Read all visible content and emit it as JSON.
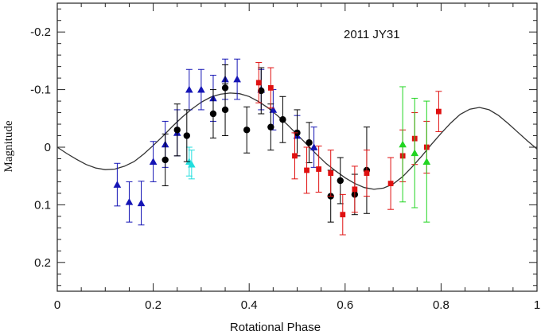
{
  "chart_data": {
    "type": "scatter",
    "title": "",
    "annotation": "2011 JY31",
    "xlabel": "Rotational Phase",
    "ylabel": "Magnitude",
    "xlim": [
      0,
      1
    ],
    "ylim": [
      0.25,
      -0.25
    ],
    "y_inverted": true,
    "grid": false,
    "legend": "none",
    "x_ticks": [
      0,
      0.2,
      0.4,
      0.6,
      0.8,
      1
    ],
    "x_tick_labels": [
      "0",
      "0.2",
      "0.4",
      "0.6",
      "0.8",
      "1"
    ],
    "y_ticks": [
      -0.2,
      -0.1,
      0,
      0.1,
      0.2
    ],
    "y_tick_labels": [
      "-0.2",
      "-0.1",
      "0",
      "0.1",
      "0.2"
    ],
    "series": [
      {
        "marker": "triangle",
        "color": "#1515b5",
        "points": [
          {
            "x": 0.125,
            "y": 0.065,
            "err": 0.037
          },
          {
            "x": 0.15,
            "y": 0.095,
            "err": 0.035
          },
          {
            "x": 0.175,
            "y": 0.097,
            "err": 0.038
          },
          {
            "x": 0.2,
            "y": 0.025,
            "err": 0.035
          },
          {
            "x": 0.225,
            "y": -0.005,
            "err": 0.04
          },
          {
            "x": 0.25,
            "y": -0.025,
            "err": 0.04
          },
          {
            "x": 0.275,
            "y": -0.1,
            "err": 0.035
          },
          {
            "x": 0.3,
            "y": -0.1,
            "err": 0.035
          },
          {
            "x": 0.325,
            "y": -0.085,
            "err": 0.04
          },
          {
            "x": 0.35,
            "y": -0.118,
            "err": 0.035
          },
          {
            "x": 0.375,
            "y": -0.118,
            "err": 0.035
          },
          {
            "x": 0.425,
            "y": -0.1,
            "err": 0.035
          },
          {
            "x": 0.45,
            "y": -0.065,
            "err": 0.035
          },
          {
            "x": 0.5,
            "y": -0.02,
            "err": 0.035
          },
          {
            "x": 0.535,
            "y": 0.0,
            "err": 0.035
          }
        ]
      },
      {
        "marker": "triangle",
        "color": "#22dede",
        "points": [
          {
            "x": 0.275,
            "y": 0.025,
            "err": 0.025
          },
          {
            "x": 0.28,
            "y": 0.03,
            "err": 0.025
          }
        ]
      },
      {
        "marker": "circle",
        "color": "#000000",
        "points": [
          {
            "x": 0.225,
            "y": 0.022,
            "err": 0.045
          },
          {
            "x": 0.25,
            "y": -0.03,
            "err": 0.045
          },
          {
            "x": 0.27,
            "y": -0.02,
            "err": 0.045
          },
          {
            "x": 0.325,
            "y": -0.058,
            "err": 0.042
          },
          {
            "x": 0.35,
            "y": -0.065,
            "err": 0.045
          },
          {
            "x": 0.35,
            "y": -0.103,
            "err": 0.04
          },
          {
            "x": 0.395,
            "y": -0.03,
            "err": 0.04
          },
          {
            "x": 0.425,
            "y": -0.098,
            "err": 0.04
          },
          {
            "x": 0.445,
            "y": -0.035,
            "err": 0.04
          },
          {
            "x": 0.47,
            "y": -0.048,
            "err": 0.04
          },
          {
            "x": 0.5,
            "y": -0.025,
            "err": 0.04
          },
          {
            "x": 0.525,
            "y": -0.008,
            "err": 0.035
          },
          {
            "x": 0.57,
            "y": 0.085,
            "err": 0.045
          },
          {
            "x": 0.59,
            "y": 0.058,
            "err": 0.04
          },
          {
            "x": 0.62,
            "y": 0.082,
            "err": 0.035
          },
          {
            "x": 0.645,
            "y": 0.04,
            "err": 0.075
          }
        ]
      },
      {
        "marker": "square",
        "color": "#e01010",
        "points": [
          {
            "x": 0.42,
            "y": -0.112,
            "err": 0.035
          },
          {
            "x": 0.445,
            "y": -0.103,
            "err": 0.035
          },
          {
            "x": 0.495,
            "y": 0.015,
            "err": 0.04
          },
          {
            "x": 0.52,
            "y": 0.04,
            "err": 0.04
          },
          {
            "x": 0.545,
            "y": 0.038,
            "err": 0.04
          },
          {
            "x": 0.57,
            "y": 0.045,
            "err": 0.04
          },
          {
            "x": 0.595,
            "y": 0.117,
            "err": 0.035
          },
          {
            "x": 0.62,
            "y": 0.073,
            "err": 0.04
          },
          {
            "x": 0.645,
            "y": 0.045,
            "err": 0.04
          },
          {
            "x": 0.695,
            "y": 0.063,
            "err": 0.045
          },
          {
            "x": 0.72,
            "y": 0.015,
            "err": 0.045
          },
          {
            "x": 0.745,
            "y": -0.015,
            "err": 0.045
          },
          {
            "x": 0.77,
            "y": 0.0,
            "err": 0.045
          },
          {
            "x": 0.795,
            "y": -0.062,
            "err": 0.035
          }
        ]
      },
      {
        "marker": "triangle",
        "color": "#22d522",
        "points": [
          {
            "x": 0.72,
            "y": -0.005,
            "err": 0.1
          },
          {
            "x": 0.745,
            "y": 0.01,
            "err": 0.095
          },
          {
            "x": 0.77,
            "y": 0.025,
            "err": 0.105
          }
        ]
      }
    ],
    "fit_curve": {
      "type": "line",
      "color": "#333333",
      "points": [
        [
          0.0,
          0.0
        ],
        [
          0.02,
          0.011
        ],
        [
          0.04,
          0.021
        ],
        [
          0.06,
          0.03
        ],
        [
          0.08,
          0.036
        ],
        [
          0.1,
          0.039
        ],
        [
          0.12,
          0.038
        ],
        [
          0.14,
          0.033
        ],
        [
          0.16,
          0.025
        ],
        [
          0.18,
          0.012
        ],
        [
          0.2,
          -0.003
        ],
        [
          0.22,
          -0.019
        ],
        [
          0.24,
          -0.036
        ],
        [
          0.26,
          -0.052
        ],
        [
          0.28,
          -0.066
        ],
        [
          0.3,
          -0.078
        ],
        [
          0.32,
          -0.087
        ],
        [
          0.34,
          -0.092
        ],
        [
          0.36,
          -0.094
        ],
        [
          0.38,
          -0.093
        ],
        [
          0.4,
          -0.088
        ],
        [
          0.42,
          -0.079
        ],
        [
          0.44,
          -0.068
        ],
        [
          0.46,
          -0.054
        ],
        [
          0.48,
          -0.039
        ],
        [
          0.5,
          -0.022
        ],
        [
          0.52,
          -0.005
        ],
        [
          0.54,
          0.012
        ],
        [
          0.56,
          0.028
        ],
        [
          0.58,
          0.041
        ],
        [
          0.6,
          0.053
        ],
        [
          0.62,
          0.063
        ],
        [
          0.64,
          0.07
        ],
        [
          0.66,
          0.073
        ],
        [
          0.68,
          0.071
        ],
        [
          0.7,
          0.064
        ],
        [
          0.72,
          0.051
        ],
        [
          0.74,
          0.034
        ],
        [
          0.76,
          0.015
        ],
        [
          0.78,
          -0.005
        ],
        [
          0.8,
          -0.024
        ],
        [
          0.82,
          -0.042
        ],
        [
          0.84,
          -0.057
        ],
        [
          0.86,
          -0.066
        ],
        [
          0.88,
          -0.069
        ],
        [
          0.9,
          -0.065
        ],
        [
          0.92,
          -0.055
        ],
        [
          0.94,
          -0.041
        ],
        [
          0.96,
          -0.026
        ],
        [
          0.98,
          -0.011
        ],
        [
          1.0,
          0.003
        ]
      ]
    }
  }
}
